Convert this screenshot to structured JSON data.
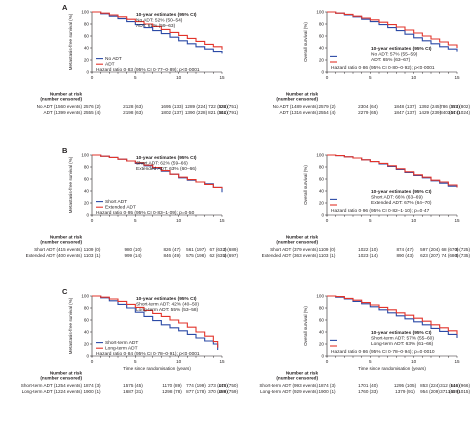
{
  "colors": {
    "control": "#2b4aa6",
    "treatment": "#e2342b",
    "axis": "#231f20"
  },
  "at_risk_header": [
    "Number at risk",
    "(number censored)"
  ],
  "chart_data": [
    {
      "panel": "A",
      "type": "line",
      "ylabel": "Metastasis-free survival (%)",
      "xlabel": "",
      "xlim": [
        0,
        15
      ],
      "ylim": [
        0,
        100
      ],
      "xticks": [
        "0",
        "5",
        "10",
        "15"
      ],
      "yticks": [
        "0",
        "20",
        "40",
        "60",
        "80",
        "100"
      ],
      "estimates": {
        "title": "10-year estimates (95% CI)",
        "lines": [
          "No ADT: 52% (50–54)",
          "ADT: 61% (59–63)"
        ],
        "pos": "top"
      },
      "legend_pos": "bottom",
      "series": [
        {
          "name": "No ADT",
          "color": "#2b4aa6",
          "x": [
            0,
            1,
            2,
            3,
            4,
            5,
            6,
            7,
            8,
            9,
            10,
            11,
            12,
            13,
            14,
            15
          ],
          "y": [
            100,
            97,
            93,
            89,
            84,
            79,
            74,
            69,
            64,
            58,
            52,
            47,
            42,
            38,
            34,
            31
          ]
        },
        {
          "name": "ADT",
          "color": "#e2342b",
          "x": [
            0,
            1,
            2,
            3,
            4,
            5,
            6,
            7,
            8,
            9,
            10,
            11,
            12,
            13,
            14,
            15
          ],
          "y": [
            100,
            98,
            95,
            92,
            88,
            84,
            80,
            76,
            71,
            66,
            61,
            56,
            51,
            46,
            42,
            37
          ]
        }
      ],
      "hazard": "Hazard ratio 0·83 (95% CI 0·77–0·89); p<0·0001",
      "risk_table": [
        {
          "label": "No ADT (1560 events)",
          "values": [
            "2576 (2)",
            "2128 (63)",
            "1695 (133)",
            "1289 (224)",
            "722 (534)",
            "325 (751)"
          ]
        },
        {
          "label": "ADT (1399 events)",
          "values": [
            "2555 (4)",
            "2198 (63)",
            "1802 (137)",
            "1390 (228)",
            "821 (544)",
            "351 (791)"
          ]
        }
      ]
    },
    {
      "panel": "",
      "type": "line",
      "ylabel": "Overall survival (%)",
      "xlabel": "",
      "xlim": [
        0,
        15
      ],
      "ylim": [
        0,
        100
      ],
      "xticks": [
        "0",
        "5",
        "10",
        "15"
      ],
      "yticks": [
        "0",
        "20",
        "40",
        "60",
        "80",
        "100"
      ],
      "estimates": {
        "title": "10-year estimates (95% CI)",
        "lines": [
          "No ADT: 57% (55–59)",
          "ADT: 65% (63–67)"
        ],
        "pos": "bottom"
      },
      "legend_pos": "",
      "series": [
        {
          "name": "No ADT",
          "color": "#2b4aa6",
          "x": [
            0,
            1,
            2,
            3,
            4,
            5,
            6,
            7,
            8,
            9,
            10,
            11,
            12,
            13,
            14,
            15
          ],
          "y": [
            100,
            98,
            95,
            92,
            88,
            84,
            79,
            74,
            69,
            63,
            57,
            52,
            47,
            42,
            38,
            34
          ]
        },
        {
          "name": "ADT",
          "color": "#e2342b",
          "x": [
            0,
            1,
            2,
            3,
            4,
            5,
            6,
            7,
            8,
            9,
            10,
            11,
            12,
            13,
            14,
            15
          ],
          "y": [
            100,
            98,
            96,
            93,
            90,
            87,
            83,
            79,
            75,
            70,
            65,
            60,
            55,
            50,
            45,
            40
          ]
        }
      ],
      "hazard": "Hazard ratio 0·86 (95% CI 0·80–0·92); p<0·0001",
      "risk_table": [
        {
          "label": "No ADT (1489 events)",
          "values": [
            "2579 (2)",
            "2304 (64)",
            "1848 (137)",
            "1392 (245)",
            "786 (574)",
            "353 (802)"
          ]
        },
        {
          "label": "ADT (1316 events)",
          "values": [
            "2554 (4)",
            "2279 (65)",
            "1847 (137)",
            "1429 (239)",
            "840 (574)",
            "344 (1024)"
          ]
        }
      ]
    },
    {
      "panel": "B",
      "type": "line",
      "ylabel": "Metastasis-free survival (%)",
      "xlabel": "",
      "xlim": [
        0,
        15
      ],
      "ylim": [
        0,
        100
      ],
      "xticks": [
        "0",
        "5",
        "10",
        "15"
      ],
      "yticks": [
        "0",
        "20",
        "40",
        "60",
        "80",
        "100"
      ],
      "estimates": {
        "title": "10-year estimates (95% CI)",
        "lines": [
          "Short ADT: 62% (59–66)",
          "Extended ADT: 63% (60–66)"
        ],
        "pos": "top"
      },
      "legend_pos": "bottom",
      "series": [
        {
          "name": "Short ADT",
          "color": "#2b4aa6",
          "x": [
            0,
            1,
            2,
            3,
            4,
            5,
            6,
            7,
            8,
            9,
            10,
            11,
            12,
            13,
            14,
            15
          ],
          "y": [
            100,
            98,
            96,
            93,
            90,
            86,
            82,
            78,
            73,
            68,
            62,
            58,
            55,
            52,
            46,
            38
          ]
        },
        {
          "name": "Extended ADT",
          "color": "#e2342b",
          "x": [
            0,
            1,
            2,
            3,
            4,
            5,
            6,
            7,
            8,
            9,
            10,
            11,
            12,
            13,
            14,
            15
          ],
          "y": [
            100,
            98,
            96,
            93,
            90,
            87,
            83,
            79,
            74,
            68,
            63,
            59,
            55,
            51,
            46,
            44
          ]
        }
      ],
      "hazard": "Hazard ratio 0·95 (95% CI 0·83–1·09); p=0·50",
      "risk_table": [
        {
          "label": "Short ADT (415 events)",
          "values": [
            "1109 (0)",
            "980 (10)",
            "826 (47)",
            "561 (197)",
            "67 (632)",
            "2 (689)"
          ]
        },
        {
          "label": "Extended ADT (400 events)",
          "values": [
            "1103 (1)",
            "999 (14)",
            "846 (49)",
            "575 (198)",
            "62 (635)",
            "3 (697)"
          ]
        }
      ]
    },
    {
      "panel": "",
      "type": "line",
      "ylabel": "Overall survival (%)",
      "xlabel": "",
      "xlim": [
        0,
        15
      ],
      "ylim": [
        0,
        100
      ],
      "xticks": [
        "0",
        "5",
        "10",
        "15"
      ],
      "yticks": [
        "0",
        "20",
        "40",
        "60",
        "80",
        "100"
      ],
      "estimates": {
        "title": "10-year estimates (95% CI)",
        "lines": [
          "Short ADT: 66% (63–69)",
          "Extended ADT: 67% (64–70)"
        ],
        "pos": "bottom"
      },
      "legend_pos": "",
      "series": [
        {
          "name": "Short ADT",
          "color": "#2b4aa6",
          "x": [
            0,
            1,
            2,
            3,
            4,
            5,
            6,
            7,
            8,
            9,
            10,
            11,
            12,
            13,
            14,
            15
          ],
          "y": [
            100,
            99,
            97,
            95,
            92,
            89,
            85,
            81,
            76,
            71,
            66,
            62,
            57,
            53,
            48,
            46
          ]
        },
        {
          "name": "Extended ADT",
          "color": "#e2342b",
          "x": [
            0,
            1,
            2,
            3,
            4,
            5,
            6,
            7,
            8,
            9,
            10,
            11,
            12,
            13,
            14,
            15
          ],
          "y": [
            100,
            99,
            97,
            95,
            92,
            89,
            86,
            82,
            77,
            72,
            67,
            63,
            58,
            55,
            50,
            46
          ]
        }
      ],
      "hazard": "Hazard ratio 0·96 (95% CI 0·82–1·10); p=0·47",
      "risk_table": [
        {
          "label": "Short ADT (379 events)",
          "values": [
            "1109 (0)",
            "1022 (10)",
            "874 (47)",
            "597 (204)",
            "68 (670)",
            "8 (725)"
          ]
        },
        {
          "label": "Extended ADT (363 events)",
          "values": [
            "1103 (1)",
            "1023 (14)",
            "890 (43)",
            "623 (207)",
            "74 (680)",
            "6 (735)"
          ]
        }
      ]
    },
    {
      "panel": "C",
      "type": "line",
      "ylabel": "Metastasis-free survival (%)",
      "xlabel": "Time since randomisation (years)",
      "xlim": [
        0,
        15
      ],
      "ylim": [
        0,
        100
      ],
      "xticks": [
        "0",
        "5",
        "10",
        "15"
      ],
      "yticks": [
        "0",
        "20",
        "40",
        "60",
        "80",
        "100"
      ],
      "estimates": {
        "title": "10-year estimates (95% CI)",
        "lines": [
          "Short-term ADT: 42% (40–50)",
          "Long-term ADT: 55% (53–58)"
        ],
        "pos": "top"
      },
      "legend_pos": "bottom",
      "series": [
        {
          "name": "Short-term ADT",
          "color": "#2b4aa6",
          "x": [
            0,
            1,
            2,
            3,
            4,
            5,
            6,
            7,
            8,
            9,
            10,
            11,
            12,
            13,
            14,
            14.5
          ],
          "y": [
            100,
            97,
            92,
            86,
            80,
            73,
            66,
            59,
            52,
            47,
            42,
            36,
            30,
            25,
            20,
            10
          ]
        },
        {
          "name": "Long-term ADT",
          "color": "#e2342b",
          "x": [
            0,
            1,
            2,
            3,
            4,
            5,
            6,
            7,
            8,
            9,
            10,
            11,
            12,
            13,
            14,
            14.5
          ],
          "y": [
            100,
            98,
            95,
            91,
            86,
            81,
            76,
            71,
            66,
            60,
            55,
            48,
            40,
            33,
            24,
            14
          ]
        }
      ],
      "hazard": "Hazard ratio 0·84 (95% CI 0·78–0·91); p<0·0001",
      "risk_table": [
        {
          "label": "Short-term ADT (1254 events)",
          "values": [
            "1874 (3)",
            "1575 (45)",
            "1170 (89)",
            "774 (199)",
            "273 (475)",
            "148 (750)"
          ]
        },
        {
          "label": "Long-term ADT (1224 events)",
          "values": [
            "1900 (1)",
            "1687 (31)",
            "1298 (78)",
            "877 (178)",
            "370 (488)",
            "159 (759)"
          ]
        }
      ]
    },
    {
      "panel": "",
      "type": "line",
      "ylabel": "Overall survival (%)",
      "xlabel": "Time since randomisation (years)",
      "xlim": [
        0,
        15
      ],
      "ylim": [
        0,
        100
      ],
      "xticks": [
        "0",
        "5",
        "10",
        "15"
      ],
      "yticks": [
        "0",
        "20",
        "40",
        "60",
        "80",
        "100"
      ],
      "estimates": {
        "title": "10-year estimates (95% CI)",
        "lines": [
          "Short-term ADT: 57% (55–60)",
          "Long-term ADT: 63% (61–66)"
        ],
        "pos": "bottom"
      },
      "legend_pos": "",
      "series": [
        {
          "name": "Short-term ADT",
          "color": "#2b4aa6",
          "x": [
            0,
            1,
            2,
            3,
            4,
            5,
            6,
            7,
            8,
            9,
            10,
            11,
            12,
            13,
            14,
            15
          ],
          "y": [
            100,
            98,
            95,
            91,
            87,
            82,
            77,
            72,
            67,
            62,
            57,
            52,
            46,
            41,
            36,
            30
          ]
        },
        {
          "name": "Long-term ADT",
          "color": "#e2342b",
          "x": [
            0,
            1,
            2,
            3,
            4,
            5,
            6,
            7,
            8,
            9,
            10,
            11,
            12,
            13,
            14,
            15
          ],
          "y": [
            100,
            99,
            96,
            93,
            89,
            85,
            81,
            77,
            72,
            68,
            63,
            58,
            52,
            47,
            42,
            36
          ]
        }
      ],
      "hazard": "Hazard ratio 0·86 (95% CI 0·78–0·94); p=0·0010",
      "risk_table": [
        {
          "label": "Short-term ADT (993 events)",
          "values": [
            "1874 (3)",
            "1701 (40)",
            "1295 (105)",
            "853 (224)",
            "312 (616)",
            "146 (966)"
          ]
        },
        {
          "label": "Long-term ADT (929 events)",
          "values": [
            "1900 (1)",
            "1760 (33)",
            "1379 (91)",
            "954 (209)",
            "371 (629)",
            "149 (1015)"
          ]
        }
      ]
    }
  ]
}
